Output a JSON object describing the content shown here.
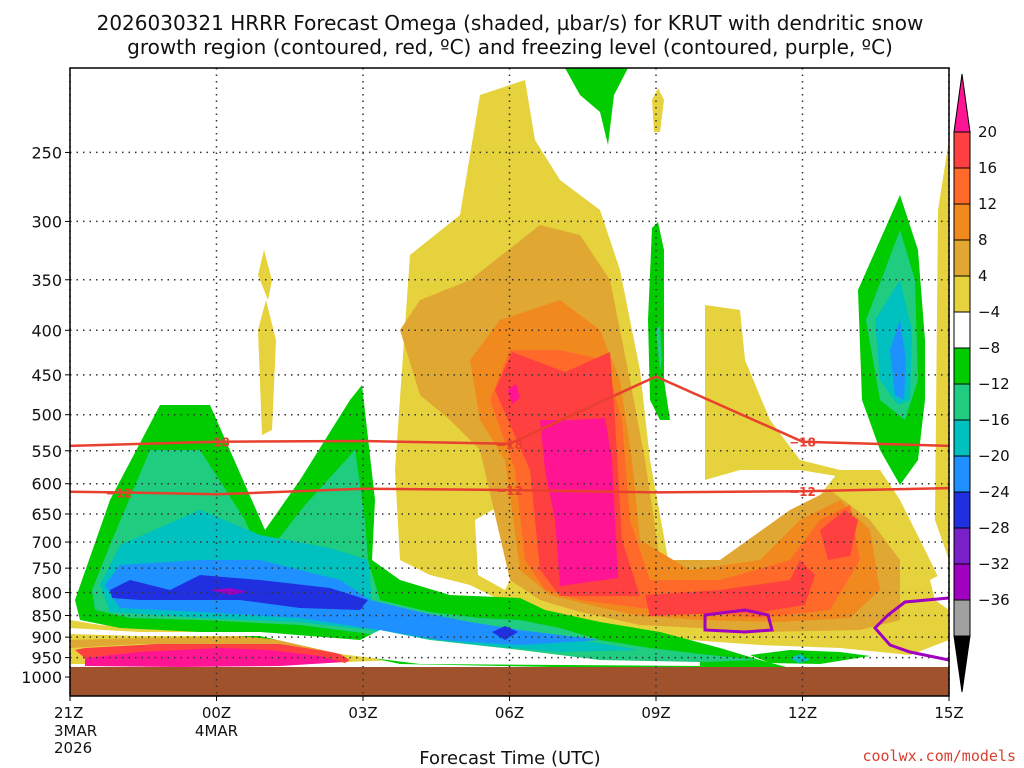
{
  "title_line1": "2026030321 HRRR Forecast Omega (shaded, µbar/s) for KRUT with dendritic snow",
  "title_line2": "growth region (contoured, red, ºC) and freezing level (contoured, purple, ºC)",
  "xlabel": "Forecast Time (UTC)",
  "credit": "coolwx.com/models",
  "chart_data": {
    "type": "heatmap",
    "x_ticks": [
      {
        "label": "21Z",
        "hour": 0,
        "sub": [
          "3MAR",
          "2026"
        ]
      },
      {
        "label": "00Z",
        "hour": 3,
        "sub": [
          "4MAR"
        ]
      },
      {
        "label": "03Z",
        "hour": 6,
        "sub": []
      },
      {
        "label": "06Z",
        "hour": 9,
        "sub": []
      },
      {
        "label": "09Z",
        "hour": 12,
        "sub": []
      },
      {
        "label": "12Z",
        "hour": 15,
        "sub": []
      },
      {
        "label": "15Z",
        "hour": 18,
        "sub": []
      }
    ],
    "y_ticks": [
      250,
      300,
      350,
      400,
      450,
      500,
      550,
      600,
      650,
      700,
      750,
      800,
      850,
      900,
      950,
      1000
    ],
    "y_range_hPa": [
      200,
      1000
    ],
    "y_scale": "log",
    "grid": true,
    "colorbar": {
      "levels": [
        "20",
        "16",
        "12",
        "8",
        "4",
        "−4",
        "−8",
        "−12",
        "−16",
        "−20",
        "−24",
        "−28",
        "−32",
        "−36"
      ],
      "colors": [
        "#ff1493",
        "#ff4040",
        "#ff6a2a",
        "#f08a1e",
        "#e0a832",
        "#e6d23c",
        "#ffffff",
        "#00cc00",
        "#1fcc80",
        "#00c0c0",
        "#1e90ff",
        "#2030e0",
        "#7a20c8",
        "#a000c0",
        "#a0a0a0",
        "#000000"
      ]
    },
    "contours": [
      {
        "label": "−18",
        "color": "#e8402f",
        "points": [
          [
            0,
            543
          ],
          [
            3,
            537
          ],
          [
            6,
            536
          ],
          [
            9,
            540
          ],
          [
            12,
            452
          ],
          [
            15,
            537
          ],
          [
            18,
            543
          ]
        ]
      },
      {
        "label": "−12",
        "color": "#e8402f",
        "points": [
          [
            0,
            613
          ],
          [
            1,
            614
          ],
          [
            3,
            617
          ],
          [
            6,
            608
          ],
          [
            9,
            610
          ],
          [
            12,
            614
          ],
          [
            15,
            612
          ],
          [
            18,
            607
          ]
        ]
      }
    ],
    "freezing_level": {
      "color": "#a000c0",
      "label": "0"
    }
  }
}
